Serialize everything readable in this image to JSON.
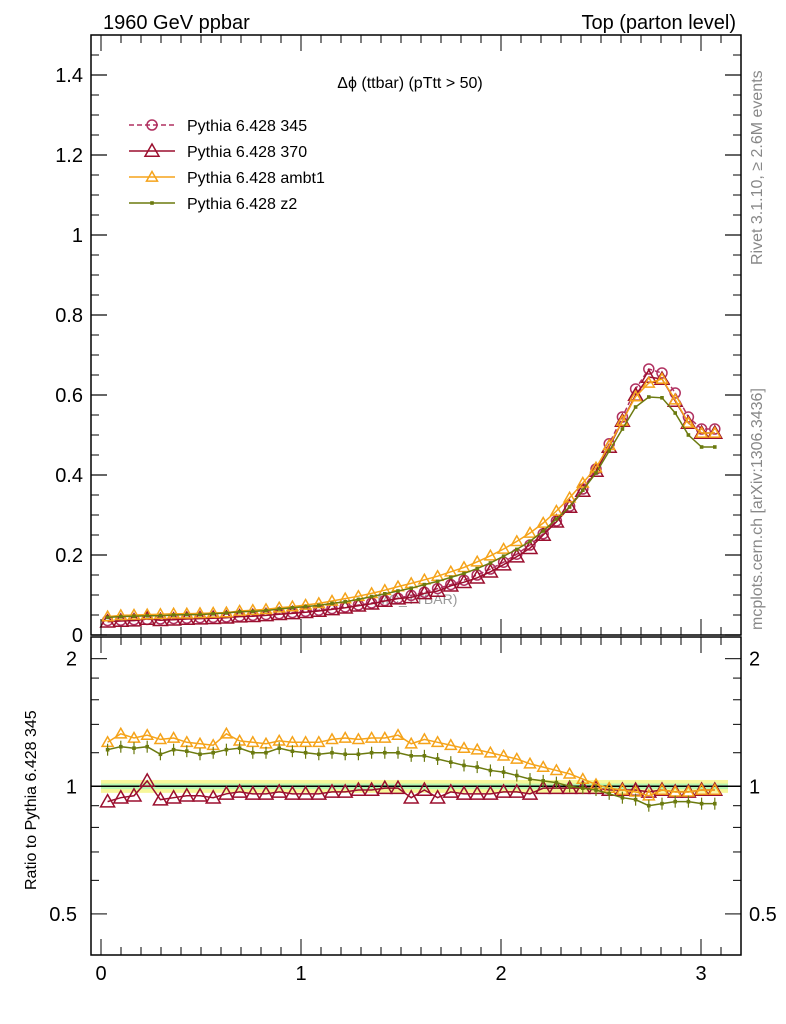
{
  "header": {
    "left": "1960 GeV ppbar",
    "right": "Top (parton level)"
  },
  "side_labels": {
    "rivet": "Rivet 3.1.10, ≥ 2.6M events",
    "mcplots": "mcplots.cern.ch [arXiv:1306.3436]"
  },
  "watermark": "(MC_TTBAR)",
  "colors": {
    "p345": "#b03060",
    "p370": "#9b0f2e",
    "ambt1": "#f5a31a",
    "z2": "#6b7a0f",
    "band_green": "#b6f5b0",
    "band_yellow": "#f7f79a"
  },
  "chart_data": [
    {
      "type": "line",
      "title": "Δϕ (ttbar) (pTtt > 50)",
      "xlabel": "",
      "ylabel": "",
      "xlim": [
        -0.05,
        3.2
      ],
      "ylim": [
        0,
        1.5
      ],
      "yticks": [
        "0",
        "0.2",
        "0.4",
        "0.6",
        "0.8",
        "1",
        "1.2",
        "1.4"
      ],
      "xticks": [
        "0",
        "1",
        "2",
        "3"
      ],
      "legend_position": "top-left",
      "x": [
        0.033,
        0.099,
        0.165,
        0.231,
        0.297,
        0.363,
        0.429,
        0.495,
        0.561,
        0.627,
        0.693,
        0.759,
        0.825,
        0.891,
        0.957,
        1.023,
        1.089,
        1.155,
        1.221,
        1.287,
        1.353,
        1.419,
        1.485,
        1.551,
        1.617,
        1.683,
        1.749,
        1.815,
        1.881,
        1.947,
        2.013,
        2.079,
        2.145,
        2.211,
        2.277,
        2.343,
        2.409,
        2.475,
        2.541,
        2.607,
        2.673,
        2.739,
        2.805,
        2.871,
        2.937,
        3.003,
        3.069
      ],
      "series": [
        {
          "name": "Pythia 6.428 345",
          "color": "#b03060",
          "marker": "open-circle",
          "dashed": true,
          "values": [
            0.036,
            0.037,
            0.038,
            0.039,
            0.04,
            0.041,
            0.042,
            0.043,
            0.044,
            0.045,
            0.047,
            0.049,
            0.051,
            0.053,
            0.056,
            0.059,
            0.062,
            0.066,
            0.07,
            0.075,
            0.08,
            0.086,
            0.092,
            0.099,
            0.107,
            0.116,
            0.126,
            0.137,
            0.15,
            0.165,
            0.182,
            0.202,
            0.225,
            0.253,
            0.285,
            0.322,
            0.365,
            0.415,
            0.478,
            0.545,
            0.615,
            0.665,
            0.655,
            0.605,
            0.545,
            0.515,
            0.515
          ]
        },
        {
          "name": "Pythia 6.428 370",
          "color": "#9b0f2e",
          "marker": "open-triangle",
          "dashed": false,
          "values": [
            0.033,
            0.035,
            0.036,
            0.04,
            0.037,
            0.038,
            0.04,
            0.041,
            0.042,
            0.043,
            0.046,
            0.047,
            0.049,
            0.052,
            0.054,
            0.057,
            0.06,
            0.064,
            0.068,
            0.073,
            0.078,
            0.085,
            0.091,
            0.094,
            0.104,
            0.11,
            0.123,
            0.132,
            0.143,
            0.158,
            0.176,
            0.196,
            0.217,
            0.25,
            0.283,
            0.32,
            0.36,
            0.41,
            0.47,
            0.535,
            0.6,
            0.645,
            0.64,
            0.585,
            0.53,
            0.505,
            0.505
          ]
        },
        {
          "name": "Pythia 6.428 ambt1",
          "color": "#f5a31a",
          "marker": "open-triangle-small",
          "dashed": false,
          "values": [
            0.046,
            0.049,
            0.05,
            0.051,
            0.052,
            0.053,
            0.053,
            0.054,
            0.055,
            0.056,
            0.06,
            0.062,
            0.064,
            0.068,
            0.071,
            0.075,
            0.079,
            0.085,
            0.091,
            0.097,
            0.104,
            0.112,
            0.121,
            0.129,
            0.138,
            0.147,
            0.158,
            0.169,
            0.183,
            0.198,
            0.215,
            0.234,
            0.255,
            0.28,
            0.31,
            0.343,
            0.38,
            0.418,
            0.474,
            0.535,
            0.596,
            0.63,
            0.64,
            0.588,
            0.53,
            0.505,
            0.505
          ]
        },
        {
          "name": "Pythia 6.428 z2",
          "color": "#6b7a0f",
          "marker": "dot",
          "dashed": false,
          "values": [
            0.044,
            0.046,
            0.047,
            0.048,
            0.048,
            0.05,
            0.051,
            0.051,
            0.053,
            0.055,
            0.058,
            0.059,
            0.061,
            0.065,
            0.068,
            0.071,
            0.074,
            0.079,
            0.083,
            0.089,
            0.096,
            0.103,
            0.11,
            0.117,
            0.126,
            0.134,
            0.144,
            0.154,
            0.166,
            0.18,
            0.197,
            0.214,
            0.234,
            0.26,
            0.29,
            0.32,
            0.362,
            0.405,
            0.46,
            0.515,
            0.57,
            0.595,
            0.593,
            0.555,
            0.5,
            0.47,
            0.47
          ]
        }
      ]
    },
    {
      "type": "line",
      "title": "",
      "xlabel": "",
      "ylabel": "Ratio to Pythia 6.428 345",
      "xlim": [
        -0.05,
        3.2
      ],
      "ylim": [
        0.4,
        2.25
      ],
      "yticks": [
        "0.5",
        "1",
        "2"
      ],
      "xticks": [
        "0",
        "1",
        "2",
        "3"
      ],
      "log_scale_y": true,
      "x": [
        0.033,
        0.099,
        0.165,
        0.231,
        0.297,
        0.363,
        0.429,
        0.495,
        0.561,
        0.627,
        0.693,
        0.759,
        0.825,
        0.891,
        0.957,
        1.023,
        1.089,
        1.155,
        1.221,
        1.287,
        1.353,
        1.419,
        1.485,
        1.551,
        1.617,
        1.683,
        1.749,
        1.815,
        1.881,
        1.947,
        2.013,
        2.079,
        2.145,
        2.211,
        2.277,
        2.343,
        2.409,
        2.475,
        2.541,
        2.607,
        2.673,
        2.739,
        2.805,
        2.871,
        2.937,
        3.003,
        3.069
      ],
      "series": [
        {
          "name": "Pythia 6.428 345",
          "color": "#000000",
          "values": [
            1,
            1,
            1,
            1,
            1,
            1,
            1,
            1,
            1,
            1,
            1,
            1,
            1,
            1,
            1,
            1,
            1,
            1,
            1,
            1,
            1,
            1,
            1,
            1,
            1,
            1,
            1,
            1,
            1,
            1,
            1,
            1,
            1,
            1,
            1,
            1,
            1,
            1,
            1,
            1,
            1,
            1,
            1,
            1,
            1,
            1,
            1
          ]
        },
        {
          "name": "Pythia 6.428 370",
          "color": "#9b0f2e",
          "values": [
            0.92,
            0.94,
            0.95,
            1.03,
            0.93,
            0.94,
            0.95,
            0.95,
            0.94,
            0.96,
            0.97,
            0.96,
            0.96,
            0.97,
            0.96,
            0.96,
            0.96,
            0.97,
            0.97,
            0.98,
            0.98,
            0.99,
            0.99,
            0.94,
            0.98,
            0.94,
            0.97,
            0.96,
            0.96,
            0.96,
            0.97,
            0.97,
            0.96,
            0.99,
            0.99,
            0.99,
            0.99,
            0.99,
            0.98,
            0.98,
            0.98,
            0.97,
            0.98,
            0.97,
            0.97,
            0.98,
            0.98
          ]
        },
        {
          "name": "Pythia 6.428 ambt1",
          "color": "#f5a31a",
          "values": [
            1.27,
            1.33,
            1.3,
            1.32,
            1.29,
            1.3,
            1.27,
            1.26,
            1.25,
            1.33,
            1.28,
            1.27,
            1.26,
            1.28,
            1.27,
            1.27,
            1.27,
            1.29,
            1.3,
            1.29,
            1.3,
            1.3,
            1.32,
            1.26,
            1.29,
            1.27,
            1.25,
            1.23,
            1.22,
            1.2,
            1.18,
            1.16,
            1.13,
            1.11,
            1.09,
            1.07,
            1.04,
            1.01,
            0.99,
            0.98,
            0.97,
            0.95,
            0.98,
            0.97,
            0.97,
            0.98,
            0.98
          ]
        },
        {
          "name": "Pythia 6.428 z2",
          "color": "#6b7a0f",
          "values": [
            1.22,
            1.24,
            1.23,
            1.24,
            1.19,
            1.22,
            1.21,
            1.19,
            1.2,
            1.22,
            1.23,
            1.2,
            1.2,
            1.23,
            1.21,
            1.2,
            1.19,
            1.2,
            1.19,
            1.19,
            1.2,
            1.2,
            1.2,
            1.18,
            1.18,
            1.16,
            1.14,
            1.12,
            1.11,
            1.09,
            1.08,
            1.06,
            1.04,
            1.03,
            1.02,
            1.0,
            0.99,
            0.98,
            0.96,
            0.94,
            0.93,
            0.9,
            0.91,
            0.92,
            0.92,
            0.91,
            0.91
          ]
        }
      ]
    }
  ]
}
